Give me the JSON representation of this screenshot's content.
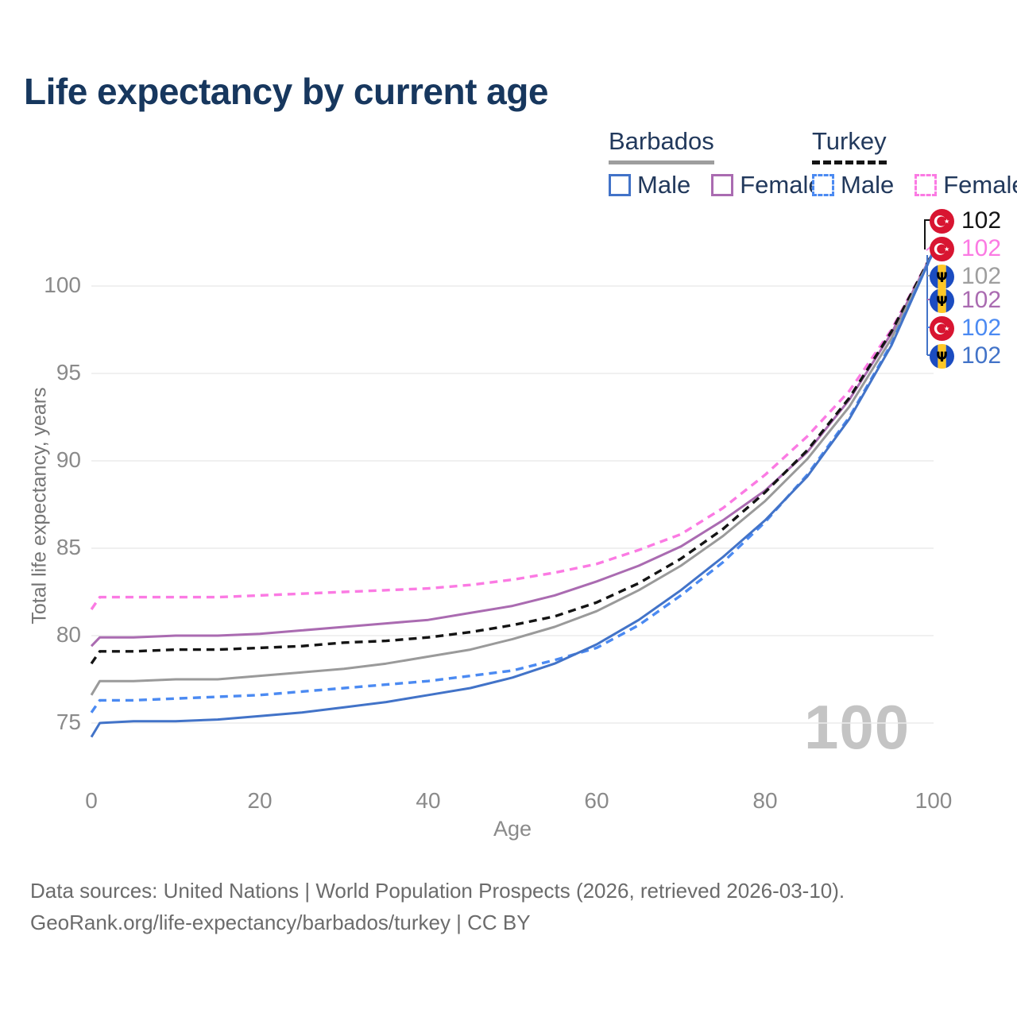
{
  "title": "Life expectancy by current age",
  "legend": {
    "groups": [
      {
        "name": "Barbados",
        "line_style": "solid",
        "line_color": "#9e9e9e",
        "items": [
          {
            "label": "Male",
            "color": "#4273c8",
            "dashed": false
          },
          {
            "label": "Female",
            "color": "#aa6bb1",
            "dashed": false
          }
        ]
      },
      {
        "name": "Turkey",
        "line_style": "dashed",
        "line_color": "#141414",
        "items": [
          {
            "label": "Male",
            "color": "#4b8af2",
            "dashed": true
          },
          {
            "label": "Female",
            "color": "#fb7ae3",
            "dashed": true
          }
        ]
      }
    ]
  },
  "chart_data": {
    "type": "line",
    "title": "Life expectancy by current age",
    "xlabel": "Age",
    "ylabel": "Total life expectancy, years",
    "xlim": [
      0,
      100
    ],
    "ylim": [
      73.5,
      104.5
    ],
    "xticks": [
      0,
      20,
      40,
      60,
      80,
      100
    ],
    "yticks": [
      75,
      80,
      85,
      90,
      95,
      100
    ],
    "grid": "horizontal-only",
    "legend_position": "top-right",
    "x": [
      0,
      1,
      5,
      10,
      15,
      20,
      25,
      30,
      35,
      40,
      45,
      50,
      55,
      60,
      65,
      70,
      75,
      80,
      85,
      90,
      95,
      100
    ],
    "series": [
      {
        "name": "Turkey Female",
        "country": "Turkey",
        "sex": "female",
        "style": "dashed",
        "color": "#fb7ae3",
        "end_label": "102",
        "values": [
          81.5,
          82.2,
          82.2,
          82.2,
          82.2,
          82.3,
          82.4,
          82.5,
          82.6,
          82.7,
          82.9,
          83.2,
          83.6,
          84.1,
          84.9,
          85.8,
          87.3,
          89.2,
          91.4,
          94.0,
          97.5,
          102
        ]
      },
      {
        "name": "Barbados Female",
        "country": "Barbados",
        "sex": "female",
        "style": "solid",
        "color": "#aa6bb1",
        "end_label": "102",
        "values": [
          79.4,
          79.9,
          79.9,
          80.0,
          80.0,
          80.1,
          80.3,
          80.5,
          80.7,
          80.9,
          81.3,
          81.7,
          82.3,
          83.1,
          84.0,
          85.1,
          86.6,
          88.3,
          90.5,
          93.5,
          97.3,
          102
        ]
      },
      {
        "name": "Turkey Both sexes",
        "country": "Turkey",
        "sex": "both",
        "style": "dashed",
        "color": "#141414",
        "end_label": "102",
        "values": [
          78.4,
          79.1,
          79.1,
          79.2,
          79.2,
          79.3,
          79.4,
          79.6,
          79.7,
          79.9,
          80.2,
          80.6,
          81.1,
          81.9,
          83.0,
          84.4,
          86.1,
          88.2,
          90.6,
          93.6,
          97.4,
          102
        ]
      },
      {
        "name": "Barbados Both sexes",
        "country": "Barbados",
        "sex": "both",
        "style": "solid",
        "color": "#9a9a9a",
        "end_label": "102",
        "values": [
          76.6,
          77.4,
          77.4,
          77.5,
          77.5,
          77.7,
          77.9,
          78.1,
          78.4,
          78.8,
          79.2,
          79.8,
          80.5,
          81.4,
          82.6,
          84.0,
          85.7,
          87.7,
          90.1,
          93.1,
          97.0,
          102
        ]
      },
      {
        "name": "Turkey Male",
        "country": "Turkey",
        "sex": "male",
        "style": "dashed",
        "color": "#4b8af2",
        "end_label": "102",
        "values": [
          75.6,
          76.3,
          76.3,
          76.4,
          76.5,
          76.6,
          76.8,
          77.0,
          77.2,
          77.4,
          77.7,
          78.0,
          78.6,
          79.3,
          80.6,
          82.3,
          84.2,
          86.5,
          89.2,
          92.5,
          96.7,
          102
        ]
      },
      {
        "name": "Barbados Male",
        "country": "Barbados",
        "sex": "male",
        "style": "solid",
        "color": "#4273c8",
        "end_label": "102",
        "values": [
          74.2,
          75.0,
          75.1,
          75.1,
          75.2,
          75.4,
          75.6,
          75.9,
          76.2,
          76.6,
          77.0,
          77.6,
          78.4,
          79.5,
          80.9,
          82.6,
          84.5,
          86.6,
          89.1,
          92.4,
          96.6,
          102
        ]
      }
    ]
  },
  "end_labels": [
    {
      "value": "102",
      "country": "Turkey",
      "color": "#141414"
    },
    {
      "value": "102",
      "country": "Turkey",
      "color": "#fb7ae3"
    },
    {
      "value": "102",
      "country": "Barbados",
      "color": "#9e9e9e"
    },
    {
      "value": "102",
      "country": "Barbados",
      "color": "#aa6bb1"
    },
    {
      "value": "102",
      "country": "Turkey",
      "color": "#4b8af2"
    },
    {
      "value": "102",
      "country": "Barbados",
      "color": "#4273c8"
    }
  ],
  "watermark_age": "100",
  "footer": {
    "line1": "Data sources: United Nations | World Population Prospects (2026, retrieved 2026-03-10).",
    "line2": "GeoRank.org/life-expectancy/barbados/turkey | CC BY"
  }
}
